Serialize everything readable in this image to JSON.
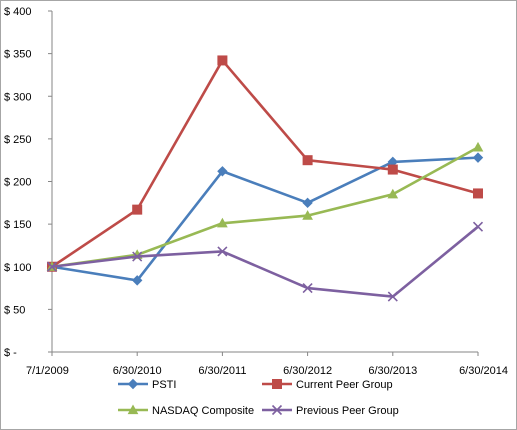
{
  "chart_data": {
    "type": "line",
    "title": "",
    "xlabel": "",
    "ylabel": "",
    "categories": [
      "7/1/2009",
      "6/30/2010",
      "6/30/2011",
      "6/30/2012",
      "6/30/2013",
      "6/30/2014"
    ],
    "y_ticks": [
      "$ -",
      "$ 50",
      "$ 100",
      "$ 150",
      "$ 200",
      "$ 250",
      "$ 300",
      "$ 350",
      "$ 400"
    ],
    "ylim": [
      0,
      400
    ],
    "grid": false,
    "legend_position": "bottom",
    "series": [
      {
        "name": "PSTI",
        "color": "#4a7ebb",
        "marker": "diamond",
        "values": [
          100,
          84,
          212,
          175,
          223,
          228
        ]
      },
      {
        "name": "Current Peer Group",
        "color": "#be4b48",
        "marker": "square",
        "values": [
          100,
          167,
          342,
          225,
          214,
          186
        ]
      },
      {
        "name": "NASDAQ Composite",
        "color": "#98b954",
        "marker": "triangle",
        "values": [
          100,
          114,
          151,
          160,
          185,
          240
        ]
      },
      {
        "name": "Previous Peer Group",
        "color": "#7d60a0",
        "marker": "x",
        "values": [
          100,
          112,
          118,
          75,
          65,
          147
        ]
      }
    ]
  }
}
